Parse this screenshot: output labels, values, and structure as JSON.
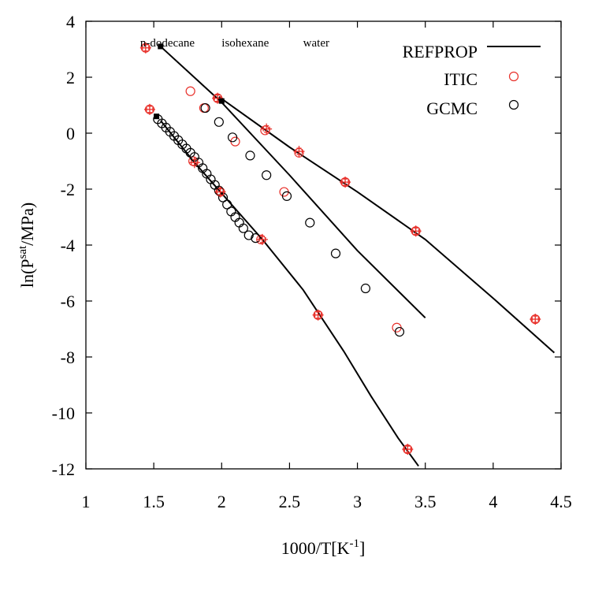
{
  "chart_data": {
    "type": "scatter",
    "xlabel": "1000/T[K",
    "xlabel_sup": "-1",
    "xlabel_tail": "]",
    "ylabel": "ln(P",
    "ylabel_sup": "sat",
    "ylabel_tail": "/MPa)",
    "xlim": [
      1,
      4.5
    ],
    "ylim": [
      -12,
      4
    ],
    "xticks": [
      1,
      1.5,
      2,
      2.5,
      3,
      3.5,
      4,
      4.5
    ],
    "xtick_labels": [
      "1",
      "1.5",
      "2",
      "2.5",
      "3",
      "3.5",
      "4",
      "4.5"
    ],
    "yticks": [
      -12,
      -10,
      -8,
      -6,
      -4,
      -2,
      0,
      2,
      4
    ],
    "ytick_labels": [
      "-12",
      "-10",
      "-8",
      "-6",
      "-4",
      "-2",
      "0",
      "2",
      "4"
    ],
    "grid": false,
    "legend": "top-right",
    "annotations": [
      {
        "text": "n-dodecane",
        "x": 1.4,
        "y": 3.1
      },
      {
        "text": "isohexane",
        "x": 2.0,
        "y": 3.1
      },
      {
        "text": "water",
        "x": 2.6,
        "y": 3.1
      }
    ],
    "series": [
      {
        "name": "REFPROP",
        "kind": "line",
        "color": "#000000",
        "segments": [
          {
            "x": [
              1.55,
              1.8,
              2.0,
              2.3,
              2.6,
              2.9,
              3.1,
              3.3,
              3.45
            ],
            "y": [
              0.45,
              -1.05,
              -2.15,
              -3.8,
              -5.6,
              -7.8,
              -9.4,
              -10.9,
              -11.9
            ]
          },
          {
            "x": [
              1.55,
              2.0,
              2.5,
              3.0,
              3.5
            ],
            "y": [
              3.1,
              1.1,
              -1.5,
              -4.2,
              -6.6
            ]
          },
          {
            "x": [
              1.98,
              2.5,
              3.0,
              3.5,
              4.0,
              4.45
            ],
            "y": [
              1.3,
              -0.5,
              -2.1,
              -3.8,
              -5.9,
              -7.85
            ]
          }
        ]
      },
      {
        "name": "ITIC",
        "kind": "open-circle",
        "color": "#e8302a",
        "x": [
          1.44,
          1.47,
          1.77,
          1.79,
          1.87,
          1.97,
          1.99,
          2.1,
          2.29,
          2.32,
          2.46,
          2.57,
          2.71,
          2.91,
          3.29,
          3.37,
          3.43,
          4.31
        ],
        "y": [
          3.05,
          0.85,
          1.5,
          -1.0,
          0.9,
          1.25,
          -2.1,
          -0.3,
          -3.8,
          0.1,
          -2.1,
          -0.7,
          -6.5,
          -1.75,
          -6.95,
          -11.3,
          -3.5,
          -6.65
        ]
      },
      {
        "name": "GCMC",
        "kind": "open-circle",
        "color": "#000000",
        "x": [
          1.53,
          1.56,
          1.59,
          1.62,
          1.65,
          1.68,
          1.71,
          1.74,
          1.77,
          1.8,
          1.83,
          1.86,
          1.89,
          1.92,
          1.95,
          1.98,
          2.01,
          2.04,
          2.07,
          2.1,
          2.13,
          2.16,
          2.2,
          2.25,
          1.88,
          1.98,
          2.08,
          2.21,
          2.33,
          2.48,
          2.65,
          2.84,
          3.06,
          3.31
        ],
        "y": [
          0.5,
          0.35,
          0.2,
          0.05,
          -0.1,
          -0.25,
          -0.4,
          -0.55,
          -0.7,
          -0.85,
          -1.05,
          -1.25,
          -1.45,
          -1.65,
          -1.85,
          -2.05,
          -2.3,
          -2.55,
          -2.8,
          -3.0,
          -3.2,
          -3.4,
          -3.65,
          -3.75,
          0.9,
          0.4,
          -0.15,
          -0.8,
          -1.5,
          -2.25,
          -3.2,
          -4.3,
          -5.55,
          -7.1
        ]
      },
      {
        "kind": "crosshair",
        "color": "#e8302a",
        "x": [
          1.44,
          1.47,
          1.8,
          1.97,
          1.99,
          2.3,
          2.33,
          2.57,
          2.71,
          2.91,
          3.37,
          3.43,
          4.31
        ],
        "y": [
          3.05,
          0.85,
          -1.05,
          1.25,
          -2.1,
          -3.8,
          0.15,
          -0.65,
          -6.5,
          -1.75,
          -11.3,
          -3.5,
          -6.65
        ]
      },
      {
        "kind": "filled-square",
        "color": "#000000",
        "x": [
          1.52,
          1.55,
          2.0
        ],
        "y": [
          0.6,
          3.1,
          1.15
        ]
      }
    ]
  }
}
